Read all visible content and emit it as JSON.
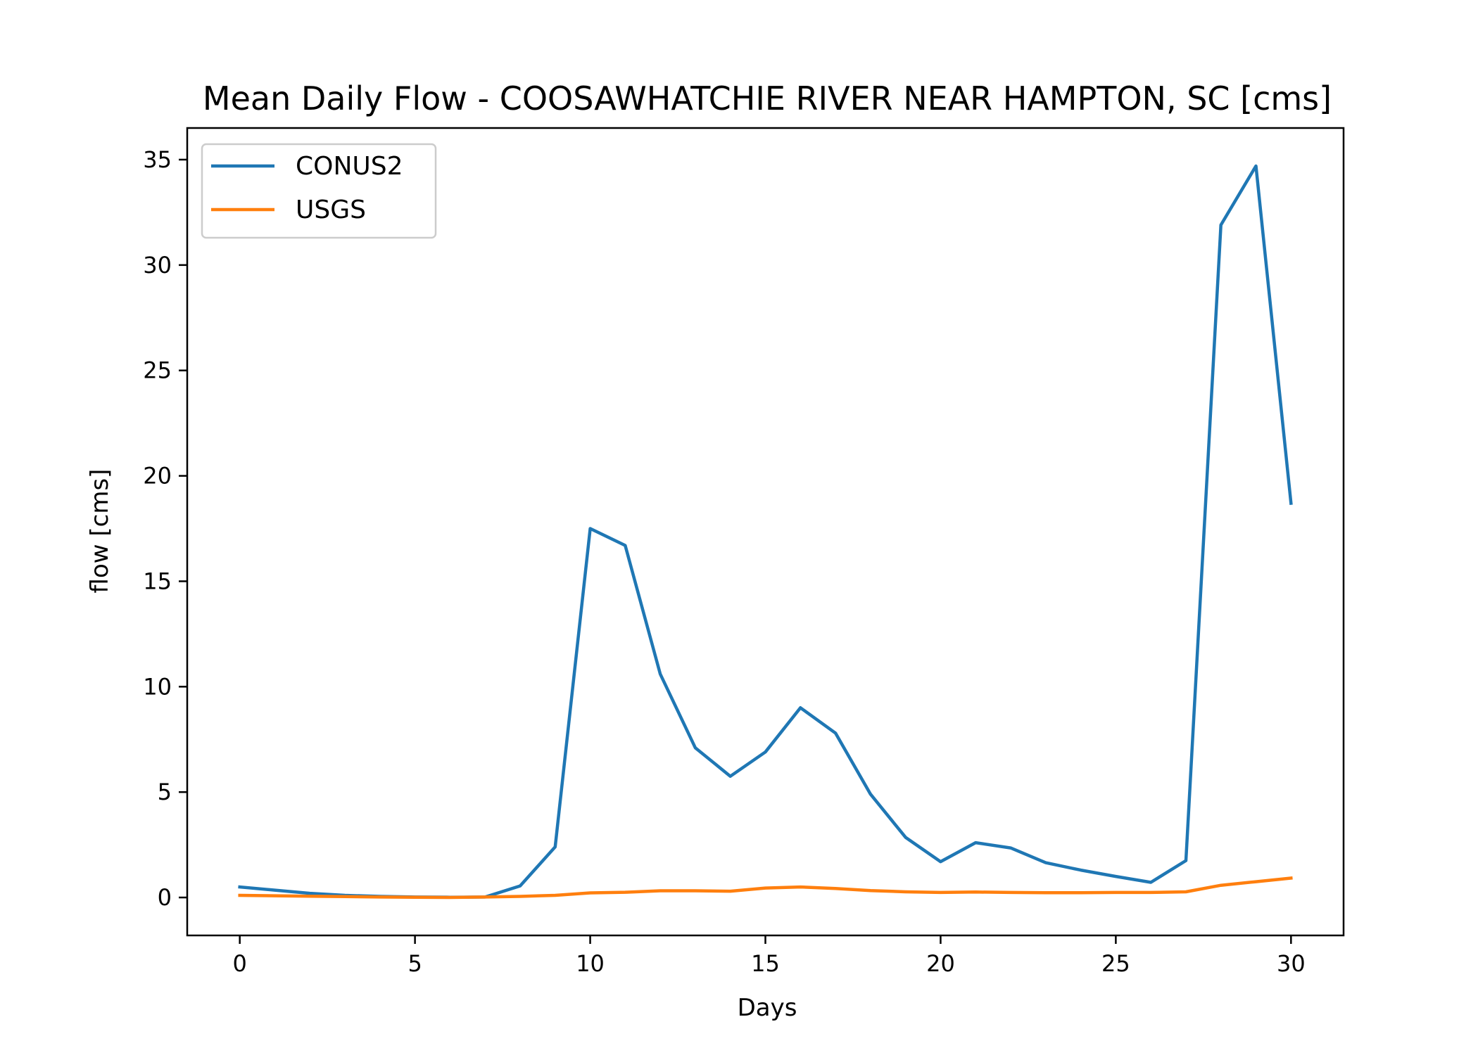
{
  "chart_data": {
    "type": "line",
    "title": "Mean Daily Flow - COOSAWHATCHIE RIVER NEAR HAMPTON, SC [cms]",
    "xlabel": "Days",
    "ylabel": "flow [cms]",
    "xlim": [
      -1.5,
      31.5
    ],
    "ylim": [
      -1.8,
      36.5
    ],
    "x_ticks": [
      0,
      5,
      10,
      15,
      20,
      25,
      30
    ],
    "y_ticks": [
      0,
      5,
      10,
      15,
      20,
      25,
      30,
      35
    ],
    "grid": false,
    "legend_position": "upper left",
    "x": [
      0,
      1,
      2,
      3,
      4,
      5,
      6,
      7,
      8,
      9,
      10,
      11,
      12,
      13,
      14,
      15,
      16,
      17,
      18,
      19,
      20,
      21,
      22,
      23,
      24,
      25,
      26,
      27,
      28,
      29,
      30
    ],
    "series": [
      {
        "name": "CONUS2",
        "color": "#1f77b4",
        "values": [
          0.5,
          0.35,
          0.2,
          0.1,
          0.05,
          0.02,
          0.01,
          0.02,
          0.55,
          2.4,
          17.5,
          16.7,
          10.6,
          7.1,
          5.75,
          6.9,
          9.0,
          7.8,
          4.9,
          2.85,
          1.7,
          2.6,
          2.35,
          1.65,
          1.3,
          1.0,
          0.72,
          1.75,
          31.9,
          34.7,
          18.7
        ]
      },
      {
        "name": "USGS",
        "color": "#ff7f0e",
        "values": [
          0.1,
          0.08,
          0.06,
          0.04,
          0.02,
          0.01,
          0.0,
          0.02,
          0.05,
          0.1,
          0.22,
          0.25,
          0.32,
          0.32,
          0.3,
          0.45,
          0.5,
          0.43,
          0.33,
          0.27,
          0.24,
          0.26,
          0.24,
          0.23,
          0.23,
          0.24,
          0.24,
          0.27,
          0.58,
          0.75,
          0.92
        ]
      }
    ]
  }
}
